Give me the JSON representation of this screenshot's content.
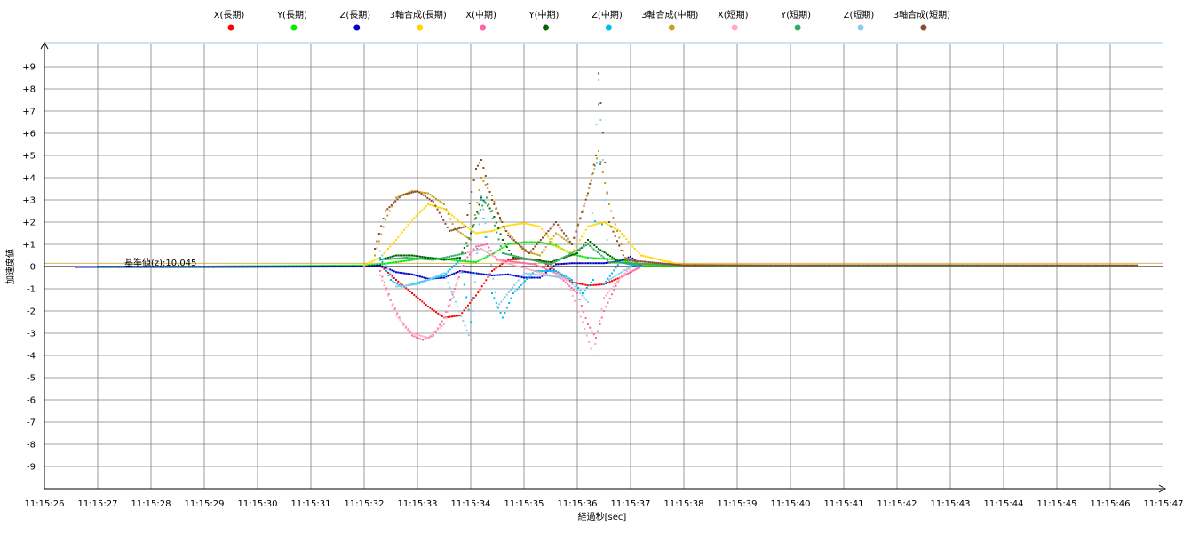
{
  "chart_data": {
    "type": "scatter",
    "xlabel": "経過秒[sec]",
    "ylabel": "加速度値",
    "x_ticks": [
      "11:15:26",
      "11:15:27",
      "11:15:28",
      "11:15:29",
      "11:15:30",
      "11:15:31",
      "11:15:32",
      "11:15:33",
      "11:15:34",
      "11:15:35",
      "11:15:36",
      "11:15:37",
      "11:15:38",
      "11:15:39",
      "11:15:40",
      "11:15:41",
      "11:15:42",
      "11:15:43",
      "11:15:44",
      "11:15:45",
      "11:15:46",
      "11:15:47"
    ],
    "xlim": [
      0,
      21
    ],
    "ylim": [
      -10,
      10
    ],
    "y_ticks": [
      {
        "value": 9,
        "label": "+9"
      },
      {
        "value": 8,
        "label": "+8"
      },
      {
        "value": 7,
        "label": "+7"
      },
      {
        "value": 6,
        "label": "+6"
      },
      {
        "value": 5,
        "label": "+5"
      },
      {
        "value": 4,
        "label": "+4"
      },
      {
        "value": 3,
        "label": "+3"
      },
      {
        "value": 2,
        "label": "+2"
      },
      {
        "value": 1,
        "label": "+1"
      },
      {
        "value": 0,
        "label": "0"
      },
      {
        "value": -1,
        "label": "-1"
      },
      {
        "value": -2,
        "label": "-2"
      },
      {
        "value": -3,
        "label": "-3"
      },
      {
        "value": -4,
        "label": "-4"
      },
      {
        "value": -5,
        "label": "-5"
      },
      {
        "value": -6,
        "label": "-6"
      },
      {
        "value": -7,
        "label": "-7"
      },
      {
        "value": -8,
        "label": "-8"
      },
      {
        "value": -9,
        "label": "-9"
      }
    ],
    "grid": true,
    "legend_position": "top",
    "reference_annotation": "基準値(z):10.045",
    "reference_value": 0.15,
    "series": [
      {
        "name": "X(長期)",
        "color": "#ff0000",
        "points": [
          [
            1,
            0
          ],
          [
            3,
            0
          ],
          [
            6,
            0.02
          ],
          [
            6.3,
            0.05
          ],
          [
            6.6,
            -0.6
          ],
          [
            6.9,
            -1.2
          ],
          [
            7.2,
            -1.8
          ],
          [
            7.5,
            -2.3
          ],
          [
            7.8,
            -2.2
          ],
          [
            8.1,
            -1.3
          ],
          [
            8.4,
            -0.2
          ],
          [
            8.7,
            0.3
          ],
          [
            9.0,
            0.35
          ],
          [
            9.3,
            0.3
          ],
          [
            9.6,
            -0.2
          ],
          [
            9.9,
            -0.7
          ],
          [
            10.2,
            -0.85
          ],
          [
            10.5,
            -0.8
          ],
          [
            10.8,
            -0.5
          ],
          [
            11.2,
            0
          ],
          [
            13,
            0
          ],
          [
            16,
            0.02
          ],
          [
            19,
            0.03
          ],
          [
            20.5,
            0
          ]
        ]
      },
      {
        "name": "Y(長期)",
        "color": "#00ee00",
        "points": [
          [
            1,
            0
          ],
          [
            3,
            0
          ],
          [
            6,
            0.05
          ],
          [
            6.3,
            0.1
          ],
          [
            6.6,
            0.2
          ],
          [
            6.9,
            0.3
          ],
          [
            7.2,
            0.4
          ],
          [
            7.5,
            0.35
          ],
          [
            7.8,
            0.25
          ],
          [
            8.1,
            0.2
          ],
          [
            8.4,
            0.55
          ],
          [
            8.7,
            1.0
          ],
          [
            9.0,
            1.1
          ],
          [
            9.3,
            1.1
          ],
          [
            9.6,
            0.95
          ],
          [
            9.9,
            0.55
          ],
          [
            10.2,
            0.4
          ],
          [
            10.5,
            0.35
          ],
          [
            10.8,
            0.3
          ],
          [
            11.2,
            0.05
          ],
          [
            13,
            0.02
          ],
          [
            16,
            0.03
          ],
          [
            19,
            0.02
          ],
          [
            20.5,
            0
          ]
        ]
      },
      {
        "name": "Z(長期)",
        "color": "#0000cc",
        "points": [
          [
            0.6,
            -0.02
          ],
          [
            1,
            -0.02
          ],
          [
            3,
            -0.02
          ],
          [
            6,
            0
          ],
          [
            6.3,
            0.05
          ],
          [
            6.6,
            -0.25
          ],
          [
            6.9,
            -0.35
          ],
          [
            7.2,
            -0.55
          ],
          [
            7.5,
            -0.5
          ],
          [
            7.8,
            -0.2
          ],
          [
            8.1,
            -0.3
          ],
          [
            8.4,
            -0.4
          ],
          [
            8.7,
            -0.35
          ],
          [
            9.0,
            -0.5
          ],
          [
            9.3,
            -0.5
          ],
          [
            9.6,
            0.1
          ],
          [
            9.9,
            0.15
          ],
          [
            10.2,
            0.15
          ],
          [
            10.5,
            0.15
          ],
          [
            10.8,
            0.25
          ],
          [
            11.0,
            0.45
          ],
          [
            11.2,
            0.02
          ]
        ]
      },
      {
        "name": "3軸合成(長期)",
        "color": "#ffd700",
        "points": [
          [
            6,
            0.05
          ],
          [
            6.3,
            0.4
          ],
          [
            6.6,
            1.2
          ],
          [
            6.9,
            2.1
          ],
          [
            7.2,
            2.8
          ],
          [
            7.5,
            2.6
          ],
          [
            7.8,
            2.0
          ],
          [
            8.1,
            1.5
          ],
          [
            8.4,
            1.6
          ],
          [
            8.7,
            1.85
          ],
          [
            9.0,
            1.95
          ],
          [
            9.3,
            1.8
          ],
          [
            9.6,
            0.9
          ],
          [
            9.9,
            0.6
          ],
          [
            10.2,
            1.8
          ],
          [
            10.5,
            2.0
          ],
          [
            10.8,
            1.6
          ],
          [
            11.0,
            1.0
          ],
          [
            11.2,
            0.5
          ],
          [
            12,
            0.05
          ],
          [
            16,
            0.05
          ],
          [
            20.5,
            0.05
          ]
        ]
      },
      {
        "name": "X(中期)",
        "color": "#ff66aa",
        "points": [
          [
            6.3,
            -0.2
          ],
          [
            6.5,
            -1.5
          ],
          [
            6.7,
            -2.5
          ],
          [
            6.9,
            -3.1
          ],
          [
            7.1,
            -3.3
          ],
          [
            7.3,
            -3.1
          ],
          [
            7.5,
            -2.3
          ],
          [
            7.7,
            -1.0
          ],
          [
            7.9,
            0.3
          ],
          [
            8.1,
            0.9
          ],
          [
            8.3,
            1.0
          ],
          [
            8.5,
            0.3
          ],
          [
            9.2,
            0.1
          ],
          [
            9.6,
            -0.3
          ],
          [
            10.0,
            -1.2
          ],
          [
            10.2,
            -2.6
          ],
          [
            10.35,
            -3.2
          ],
          [
            10.5,
            -2.0
          ],
          [
            10.8,
            -0.5
          ],
          [
            11.2,
            0
          ]
        ]
      },
      {
        "name": "Y(中期)",
        "color": "#006600",
        "points": [
          [
            6.3,
            0.3
          ],
          [
            6.6,
            0.5
          ],
          [
            6.9,
            0.5
          ],
          [
            7.2,
            0.4
          ],
          [
            7.5,
            0.3
          ],
          [
            7.8,
            0.4
          ],
          [
            8.0,
            1.5
          ],
          [
            8.2,
            3.1
          ],
          [
            8.4,
            2.5
          ],
          [
            8.6,
            1.2
          ],
          [
            8.8,
            0.4
          ],
          [
            9.5,
            0.2
          ],
          [
            10.0,
            0.6
          ],
          [
            10.2,
            1.2
          ],
          [
            10.4,
            0.8
          ],
          [
            10.8,
            0.2
          ],
          [
            11.2,
            0
          ]
        ]
      },
      {
        "name": "Z(中期)",
        "color": "#00bbee",
        "points": [
          [
            6.3,
            0.4
          ],
          [
            6.5,
            -0.6
          ],
          [
            6.7,
            -0.9
          ],
          [
            6.9,
            -0.8
          ],
          [
            7.2,
            -0.6
          ],
          [
            7.5,
            -0.4
          ],
          [
            7.8,
            0.3
          ],
          [
            8.0,
            -2.5
          ],
          [
            8.2,
            3.0
          ],
          [
            8.4,
            -1.2
          ],
          [
            8.6,
            -2.3
          ],
          [
            8.8,
            -1.2
          ],
          [
            9.2,
            -0.2
          ],
          [
            9.6,
            -0.2
          ],
          [
            9.9,
            -0.6
          ],
          [
            10.1,
            -1.2
          ],
          [
            10.3,
            -0.6
          ],
          [
            10.4,
            7.3
          ],
          [
            10.5,
            -0.8
          ],
          [
            10.8,
            0.2
          ],
          [
            11.2,
            0
          ]
        ]
      },
      {
        "name": "3軸合成(中期)",
        "color": "#c8a020",
        "points": [
          [
            6.2,
            0.5
          ],
          [
            6.4,
            2.1
          ],
          [
            6.6,
            3.1
          ],
          [
            6.9,
            3.4
          ],
          [
            7.2,
            3.3
          ],
          [
            7.5,
            2.8
          ],
          [
            7.7,
            1.7
          ],
          [
            8.0,
            1.2
          ],
          [
            8.2,
            4.0
          ],
          [
            8.4,
            3.2
          ],
          [
            8.6,
            1.8
          ],
          [
            9.0,
            0.7
          ],
          [
            9.3,
            0.5
          ],
          [
            9.6,
            1.5
          ],
          [
            9.9,
            1.0
          ],
          [
            10.1,
            2.5
          ],
          [
            10.3,
            4.2
          ],
          [
            10.4,
            5.2
          ],
          [
            10.6,
            2.8
          ],
          [
            10.9,
            0.4
          ],
          [
            11.2,
            0.1
          ],
          [
            14,
            0.05
          ],
          [
            18,
            0.05
          ],
          [
            20.5,
            0.05
          ]
        ]
      },
      {
        "name": "X(短期)",
        "color": "#ffaabb",
        "points": [
          [
            6.3,
            -0.4
          ],
          [
            6.6,
            -2.2
          ],
          [
            6.9,
            -3.0
          ],
          [
            7.2,
            -3.2
          ],
          [
            7.5,
            -2.6
          ],
          [
            7.9,
            0.6
          ],
          [
            8.2,
            0.8
          ],
          [
            8.6,
            0.2
          ],
          [
            9.8,
            -0.6
          ],
          [
            10.1,
            -2.5
          ],
          [
            10.3,
            -4.0
          ],
          [
            10.5,
            -1.4
          ],
          [
            11,
            0
          ]
        ]
      },
      {
        "name": "Y(短期)",
        "color": "#33aa66",
        "points": [
          [
            6.3,
            0.3
          ],
          [
            6.8,
            0.4
          ],
          [
            7.3,
            0.3
          ],
          [
            7.9,
            0.6
          ],
          [
            8.1,
            2.2
          ],
          [
            8.3,
            3.1
          ],
          [
            8.6,
            0.6
          ],
          [
            9.5,
            0.1
          ],
          [
            10.2,
            1.0
          ],
          [
            10.6,
            0.2
          ],
          [
            12,
            0.03
          ],
          [
            16,
            0.04
          ],
          [
            20.5,
            0.03
          ]
        ]
      },
      {
        "name": "Z(短期)",
        "color": "#88ccee",
        "points": [
          [
            6.3,
            0.7
          ],
          [
            6.6,
            -0.9
          ],
          [
            7.0,
            -0.8
          ],
          [
            7.5,
            -0.3
          ],
          [
            8.0,
            -3.3
          ],
          [
            8.2,
            3.2
          ],
          [
            8.5,
            -1.8
          ],
          [
            9.0,
            -0.3
          ],
          [
            9.8,
            -0.5
          ],
          [
            10.2,
            -1.6
          ],
          [
            10.4,
            8.4
          ],
          [
            10.6,
            -0.6
          ],
          [
            11,
            0
          ]
        ]
      },
      {
        "name": "3軸合成(短期)",
        "color": "#8b4a2a",
        "points": [
          [
            6.2,
            0.8
          ],
          [
            6.4,
            2.5
          ],
          [
            6.7,
            3.2
          ],
          [
            7.0,
            3.4
          ],
          [
            7.3,
            2.9
          ],
          [
            7.6,
            1.6
          ],
          [
            7.9,
            1.8
          ],
          [
            8.1,
            4.4
          ],
          [
            8.2,
            4.8
          ],
          [
            8.4,
            3.0
          ],
          [
            8.7,
            1.4
          ],
          [
            9.1,
            0.6
          ],
          [
            9.6,
            2.0
          ],
          [
            9.9,
            1.0
          ],
          [
            10.2,
            3.3
          ],
          [
            10.35,
            5.0
          ],
          [
            10.4,
            8.7
          ],
          [
            10.6,
            2.0
          ],
          [
            10.9,
            0.3
          ],
          [
            12,
            0.05
          ],
          [
            16,
            0.06
          ],
          [
            20.5,
            0.05
          ]
        ]
      }
    ]
  }
}
